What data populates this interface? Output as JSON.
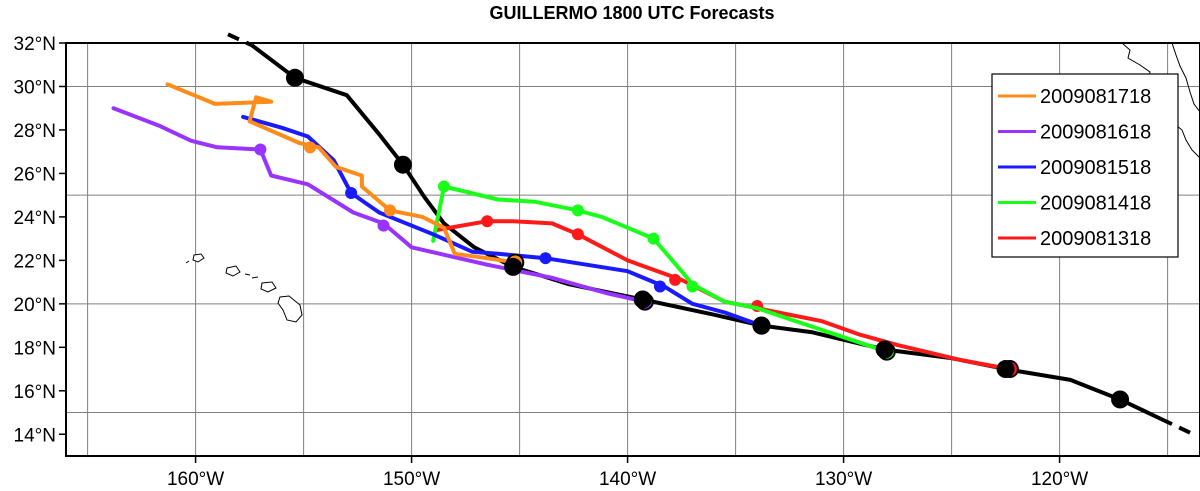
{
  "chart_data": {
    "type": "map",
    "title": "GUILLERMO 1800 UTC Forecasts",
    "lon_range": [
      -166,
      -113.5
    ],
    "lat_range": [
      13,
      32
    ],
    "x_ticks": [
      {
        "value": -160,
        "label": "160°W"
      },
      {
        "value": -150,
        "label": "150°W"
      },
      {
        "value": -140,
        "label": "140°W"
      },
      {
        "value": -130,
        "label": "130°W"
      },
      {
        "value": -120,
        "label": "120°W"
      }
    ],
    "y_ticks": [
      {
        "value": 14,
        "label": "14°N"
      },
      {
        "value": 16,
        "label": "16°N"
      },
      {
        "value": 18,
        "label": "18°N"
      },
      {
        "value": 20,
        "label": "20°N"
      },
      {
        "value": 22,
        "label": "22°N"
      },
      {
        "value": 24,
        "label": "24°N"
      },
      {
        "value": 26,
        "label": "26°N"
      },
      {
        "value": 28,
        "label": "28°N"
      },
      {
        "value": 30,
        "label": "30°N"
      },
      {
        "value": 32,
        "label": "32°N"
      }
    ],
    "grid_lon": [
      -165,
      -160,
      -155,
      -150,
      -145,
      -140,
      -135,
      -130,
      -125,
      -120,
      -115
    ],
    "grid_lat": [
      15,
      20,
      25,
      30
    ],
    "legend_position": "top-right",
    "observed_track": {
      "name": "observed",
      "color": "#000000",
      "points": [
        [
          -157.4,
          31.9
        ],
        [
          -155.4,
          30.4
        ],
        [
          -153,
          29.6
        ],
        [
          -151.5,
          27.8
        ],
        [
          -150.4,
          26.4
        ],
        [
          -149.4,
          24.9
        ],
        [
          -148.5,
          23.7
        ],
        [
          -147.1,
          22.6
        ],
        [
          -145.3,
          21.7
        ],
        [
          -142.7,
          20.9
        ],
        [
          -139.3,
          20.2
        ],
        [
          -136,
          19.5
        ],
        [
          -133.8,
          19
        ],
        [
          -131.5,
          18.7
        ],
        [
          -128.1,
          17.9
        ],
        [
          -125,
          17.5
        ],
        [
          -122.5,
          17
        ],
        [
          -119.5,
          16.5
        ],
        [
          -117.2,
          15.6
        ],
        [
          -115.3,
          14.7
        ]
      ],
      "dashed_start": [
        [
          -158.5,
          32.4
        ],
        [
          -157.4,
          31.9
        ]
      ],
      "dashed_end": [
        [
          -115.3,
          14.7
        ],
        [
          -113.8,
          14
        ]
      ],
      "markers": [
        [
          -155.4,
          30.4
        ],
        [
          -150.4,
          26.4
        ],
        [
          -145.3,
          21.7
        ],
        [
          -139.3,
          20.2
        ],
        [
          -133.8,
          19
        ],
        [
          -128.1,
          17.9
        ],
        [
          -122.5,
          17
        ],
        [
          -117.2,
          15.6
        ]
      ]
    },
    "series": [
      {
        "name": "2009081718",
        "color": "#ff8c1a",
        "points": [
          [
            -145.2,
            21.9
          ],
          [
            -146.5,
            22.1
          ],
          [
            -148,
            22.3
          ],
          [
            -148.5,
            23.5
          ],
          [
            -149.5,
            24
          ],
          [
            -151,
            24.3
          ],
          [
            -152.3,
            25.4
          ],
          [
            -152.3,
            25.9
          ],
          [
            -153.5,
            26.3
          ],
          [
            -154.3,
            27.2
          ],
          [
            -155.2,
            27.4
          ],
          [
            -157.5,
            28.4
          ],
          [
            -157.2,
            29.5
          ],
          [
            -156.5,
            29.3
          ],
          [
            -159.1,
            29.2
          ],
          [
            -161.3,
            30.1
          ]
        ],
        "markers": [
          [
            -145.2,
            21.9
          ],
          [
            -151,
            24.3
          ],
          [
            -154.7,
            27.2
          ]
        ]
      },
      {
        "name": "2009081618",
        "color": "#9933ff",
        "points": [
          [
            -139.2,
            20.1
          ],
          [
            -141,
            20.5
          ],
          [
            -143.5,
            21.2
          ],
          [
            -146.5,
            21.8
          ],
          [
            -150,
            22.6
          ],
          [
            -151.3,
            23.7
          ],
          [
            -152.7,
            24.2
          ],
          [
            -154.8,
            25.5
          ],
          [
            -156.5,
            25.9
          ],
          [
            -157,
            27.1
          ],
          [
            -159,
            27.2
          ],
          [
            -160.2,
            27.5
          ],
          [
            -161.7,
            28.2
          ],
          [
            -163.8,
            29
          ]
        ],
        "markers": [
          [
            -139.2,
            20.1
          ],
          [
            -151.3,
            23.6
          ],
          [
            -157,
            27.1
          ]
        ]
      },
      {
        "name": "2009081518",
        "color": "#1a1aff",
        "points": [
          [
            -133.8,
            19
          ],
          [
            -135.5,
            19.6
          ],
          [
            -137,
            20
          ],
          [
            -138.3,
            20.8
          ],
          [
            -140,
            21.5
          ],
          [
            -143.8,
            22.1
          ],
          [
            -146,
            22.3
          ],
          [
            -147.2,
            22.4
          ],
          [
            -149,
            23.2
          ],
          [
            -151.5,
            24.2
          ],
          [
            -152.8,
            25.1
          ],
          [
            -153.6,
            26.6
          ],
          [
            -154.8,
            27.7
          ],
          [
            -156,
            28.1
          ],
          [
            -157.8,
            28.6
          ]
        ],
        "markers": [
          [
            -133.8,
            19
          ],
          [
            -138.5,
            20.8
          ],
          [
            -143.8,
            22.1
          ],
          [
            -152.8,
            25.1
          ]
        ]
      },
      {
        "name": "2009081418",
        "color": "#1aff1a",
        "points": [
          [
            -128,
            17.8
          ],
          [
            -129.5,
            18.3
          ],
          [
            -132.5,
            19.3
          ],
          [
            -134,
            19.8
          ],
          [
            -135.5,
            20.1
          ],
          [
            -137,
            20.9
          ],
          [
            -137.5,
            21.5
          ],
          [
            -138.8,
            23
          ],
          [
            -141.2,
            24
          ],
          [
            -142.3,
            24.3
          ],
          [
            -144.3,
            24.7
          ],
          [
            -146,
            24.8
          ],
          [
            -148.5,
            25.4
          ],
          [
            -149,
            22.9
          ]
        ],
        "markers": [
          [
            -128,
            17.8
          ],
          [
            -137,
            20.8
          ],
          [
            -138.8,
            23
          ],
          [
            -142.3,
            24.3
          ],
          [
            -148.5,
            25.4
          ]
        ]
      },
      {
        "name": "2009081318",
        "color": "#ff1a1a",
        "points": [
          [
            -122.3,
            17
          ],
          [
            -124.5,
            17.4
          ],
          [
            -126.2,
            17.8
          ],
          [
            -127.5,
            18.1
          ],
          [
            -129.3,
            18.6
          ],
          [
            -131,
            19.2
          ],
          [
            -134,
            19.8
          ],
          [
            -135.5,
            20.1
          ],
          [
            -137.5,
            21.1
          ],
          [
            -140,
            22
          ],
          [
            -142.3,
            23.2
          ],
          [
            -143.5,
            23.7
          ],
          [
            -145.3,
            23.8
          ],
          [
            -146.5,
            23.8
          ],
          [
            -148.8,
            23.4
          ]
        ],
        "markers": [
          [
            -122.3,
            17
          ],
          [
            -134,
            19.9
          ],
          [
            -137.8,
            21.1
          ],
          [
            -142.3,
            23.2
          ],
          [
            -146.5,
            23.8
          ]
        ]
      }
    ]
  }
}
